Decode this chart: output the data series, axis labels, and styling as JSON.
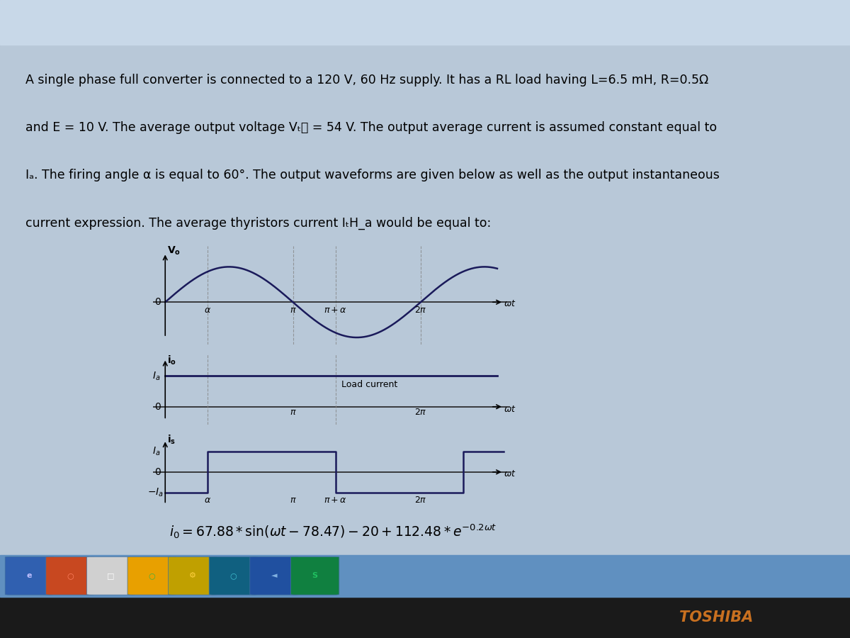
{
  "bg_color": "#b8c8d8",
  "plot_bg": "#ddd8c4",
  "alpha_deg": 60,
  "text_lines": [
    "A single phase full converter is connected to a 120 V, 60 Hz supply. It has a RL load having L=6.5 mH, R=0.5Ω",
    "and E = 10 V. The average output voltage VₜⲜ = 54 V. The output average current is assumed constant equal to",
    "Iₐ. The firing angle α is equal to 60°. The output waveforms are given below as well as the output instantaneous",
    "current expression. The average thyristors current IₜH_a would be equal to:"
  ],
  "taskbar_bg": "#6090c0",
  "taskbar_dark": "#1a2040",
  "toshiba_color": "#c87020",
  "line_color": "#1a1a5a",
  "zero_line_color": "#222222",
  "dashed_color": "#888888"
}
